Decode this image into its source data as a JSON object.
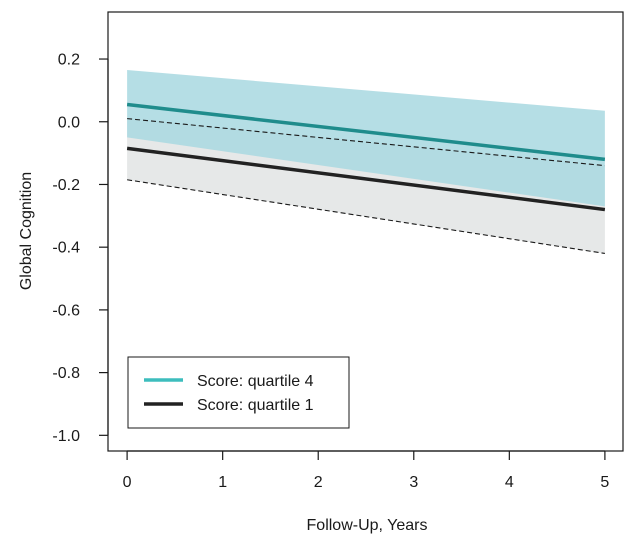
{
  "chart_data": {
    "type": "line",
    "xlabel": "Follow-Up, Years",
    "ylabel": "Global Cognition",
    "xlim": [
      -0.2,
      5.2
    ],
    "ylim": [
      -1.05,
      0.35
    ],
    "x_ticks": [
      0,
      1,
      2,
      3,
      4,
      5
    ],
    "x_tick_labels": [
      "0",
      "1",
      "2",
      "3",
      "4",
      "5"
    ],
    "y_ticks": [
      0.2,
      0.0,
      -0.2,
      -0.4,
      -0.6,
      -0.8,
      -1.0
    ],
    "y_tick_labels": [
      "0.2",
      "0.0",
      "-0.2",
      "-0.4",
      "-0.6",
      "-0.8",
      "-1.0"
    ],
    "grid": false,
    "legend_position": "bottom-left",
    "series": [
      {
        "name": "Score: quartile 4",
        "color": "#1f8c8c",
        "legend_color": "#3dbdbd",
        "band_color": "#a8d8e0",
        "x": [
          0,
          5
        ],
        "y": [
          0.055,
          -0.12
        ],
        "lower": [
          -0.05,
          -0.27
        ],
        "upper": [
          0.165,
          0.035
        ]
      },
      {
        "name": "Score: quartile 1",
        "color": "#222222",
        "legend_color": "#222222",
        "band_color": "#e6e8e8",
        "x": [
          0,
          5
        ],
        "y": [
          -0.085,
          -0.28
        ],
        "lower": [
          -0.185,
          -0.42
        ],
        "upper": [
          0.01,
          -0.14
        ]
      }
    ]
  }
}
